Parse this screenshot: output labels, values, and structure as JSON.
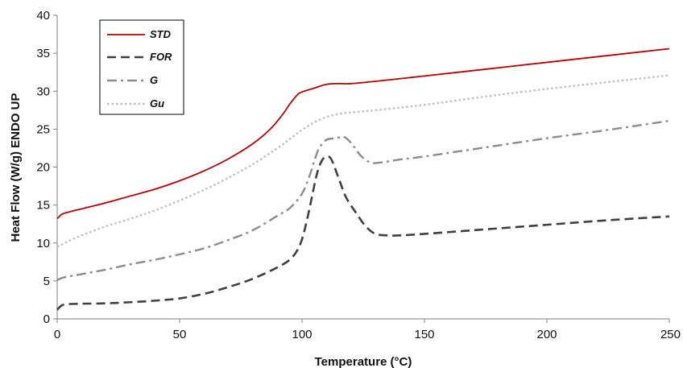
{
  "chart_data": {
    "type": "line",
    "title": "",
    "xlabel": "Temperature (°C)",
    "ylabel": "Heat Flow (W/g) ENDO UP",
    "xlim": [
      0,
      250
    ],
    "ylim": [
      0,
      40
    ],
    "x_ticks": [
      0,
      50,
      100,
      150,
      200,
      250
    ],
    "y_ticks": [
      0,
      5,
      10,
      15,
      20,
      25,
      30,
      35,
      40
    ],
    "grid": false,
    "legend": {
      "placement": "top-left",
      "boxed": true
    },
    "series": [
      {
        "name": "STD",
        "color": "#c00000",
        "style": "solid",
        "points": [
          [
            0,
            13.2
          ],
          [
            2,
            13.8
          ],
          [
            5,
            14.1
          ],
          [
            10,
            14.5
          ],
          [
            20,
            15.3
          ],
          [
            30,
            16.2
          ],
          [
            40,
            17.1
          ],
          [
            50,
            18.2
          ],
          [
            60,
            19.5
          ],
          [
            70,
            21.1
          ],
          [
            80,
            23.1
          ],
          [
            87,
            25.0
          ],
          [
            92,
            26.9
          ],
          [
            95,
            28.3
          ],
          [
            98,
            29.5
          ],
          [
            100,
            29.9
          ],
          [
            105,
            30.4
          ],
          [
            110,
            30.9
          ],
          [
            115,
            31.0
          ],
          [
            120,
            31.0
          ],
          [
            130,
            31.3
          ],
          [
            150,
            32.0
          ],
          [
            175,
            32.9
          ],
          [
            200,
            33.8
          ],
          [
            225,
            34.7
          ],
          [
            250,
            35.6
          ]
        ]
      },
      {
        "name": "FOR",
        "color": "#404040",
        "style": "dash",
        "points": [
          [
            0,
            1.2
          ],
          [
            2,
            1.8
          ],
          [
            5,
            1.95
          ],
          [
            10,
            2.0
          ],
          [
            20,
            2.05
          ],
          [
            30,
            2.2
          ],
          [
            40,
            2.4
          ],
          [
            50,
            2.7
          ],
          [
            60,
            3.3
          ],
          [
            70,
            4.2
          ],
          [
            80,
            5.3
          ],
          [
            90,
            6.8
          ],
          [
            95,
            7.8
          ],
          [
            98,
            9.0
          ],
          [
            100,
            10.5
          ],
          [
            102,
            13.0
          ],
          [
            104,
            16.0
          ],
          [
            106,
            19.0
          ],
          [
            108,
            20.8
          ],
          [
            110,
            21.4
          ],
          [
            112,
            21.0
          ],
          [
            115,
            18.5
          ],
          [
            118,
            16.0
          ],
          [
            122,
            14.0
          ],
          [
            126,
            12.2
          ],
          [
            130,
            11.2
          ],
          [
            135,
            11.0
          ],
          [
            140,
            11.0
          ],
          [
            150,
            11.2
          ],
          [
            175,
            11.8
          ],
          [
            200,
            12.4
          ],
          [
            225,
            13.0
          ],
          [
            250,
            13.5
          ]
        ]
      },
      {
        "name": "G",
        "color": "#8c8c8c",
        "style": "dashdot",
        "points": [
          [
            0,
            5.1
          ],
          [
            2,
            5.4
          ],
          [
            5,
            5.6
          ],
          [
            10,
            5.9
          ],
          [
            20,
            6.5
          ],
          [
            30,
            7.2
          ],
          [
            40,
            7.8
          ],
          [
            50,
            8.5
          ],
          [
            60,
            9.3
          ],
          [
            70,
            10.4
          ],
          [
            80,
            11.7
          ],
          [
            90,
            13.6
          ],
          [
            95,
            14.6
          ],
          [
            100,
            16.5
          ],
          [
            103,
            18.8
          ],
          [
            105,
            20.8
          ],
          [
            107,
            22.5
          ],
          [
            110,
            23.6
          ],
          [
            114,
            23.8
          ],
          [
            117,
            24.0
          ],
          [
            120,
            23.2
          ],
          [
            124,
            21.5
          ],
          [
            128,
            20.6
          ],
          [
            132,
            20.6
          ],
          [
            140,
            21.0
          ],
          [
            150,
            21.4
          ],
          [
            175,
            22.6
          ],
          [
            200,
            23.8
          ],
          [
            225,
            24.9
          ],
          [
            250,
            26.1
          ]
        ]
      },
      {
        "name": "Gu",
        "color": "#bfbfbf",
        "style": "dot",
        "points": [
          [
            0,
            9.5
          ],
          [
            2,
            9.8
          ],
          [
            5,
            10.3
          ],
          [
            10,
            11.0
          ],
          [
            20,
            12.2
          ],
          [
            30,
            13.2
          ],
          [
            40,
            14.3
          ],
          [
            50,
            15.6
          ],
          [
            60,
            17.0
          ],
          [
            70,
            18.6
          ],
          [
            80,
            20.4
          ],
          [
            90,
            22.5
          ],
          [
            95,
            23.7
          ],
          [
            100,
            24.9
          ],
          [
            105,
            25.9
          ],
          [
            110,
            26.6
          ],
          [
            115,
            27.0
          ],
          [
            120,
            27.2
          ],
          [
            130,
            27.5
          ],
          [
            150,
            28.2
          ],
          [
            175,
            29.3
          ],
          [
            200,
            30.3
          ],
          [
            225,
            31.2
          ],
          [
            250,
            32.1
          ]
        ]
      }
    ]
  }
}
